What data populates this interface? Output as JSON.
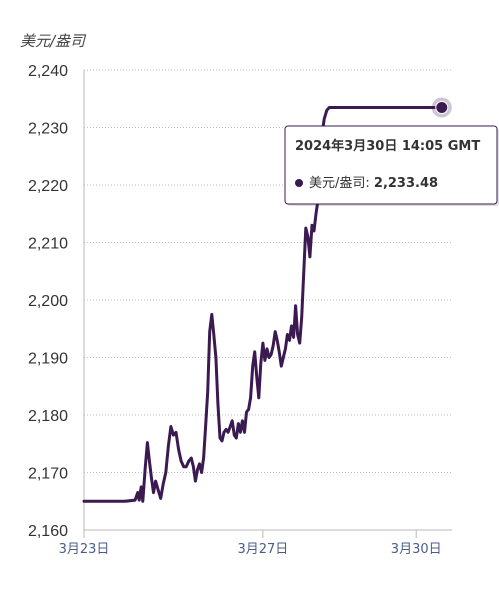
{
  "chart_data": {
    "type": "line",
    "ylabel": "美元/盎司",
    "ylim": [
      2160,
      2240
    ],
    "yticks": [
      2160,
      2170,
      2180,
      2190,
      2200,
      2210,
      2220,
      2230,
      2240
    ],
    "ytick_labels": [
      "2,160",
      "2,170",
      "2,180",
      "2,190",
      "2,200",
      "2,210",
      "2,220",
      "2,230",
      "2,240"
    ],
    "xlim": [
      0,
      7.2
    ],
    "xticks": [
      {
        "x": 0,
        "label": "3月23日"
      },
      {
        "x": 3.5,
        "label": "3月27日"
      },
      {
        "x": 6.5,
        "label": "3月30日"
      }
    ],
    "x_unit": "days since 3月23日",
    "grid": true,
    "line_color": "#3b1a52",
    "series": [
      {
        "name": "美元/盎司",
        "points": [
          [
            0.0,
            2165.0
          ],
          [
            0.2,
            2165.0
          ],
          [
            0.4,
            2165.0
          ],
          [
            0.6,
            2165.0
          ],
          [
            0.8,
            2165.0
          ],
          [
            1.0,
            2165.2
          ],
          [
            1.05,
            2166.5
          ],
          [
            1.08,
            2165.2
          ],
          [
            1.12,
            2167.5
          ],
          [
            1.15,
            2165.0
          ],
          [
            1.2,
            2171.0
          ],
          [
            1.24,
            2175.2
          ],
          [
            1.28,
            2172.0
          ],
          [
            1.32,
            2169.0
          ],
          [
            1.36,
            2166.5
          ],
          [
            1.4,
            2168.5
          ],
          [
            1.45,
            2167.0
          ],
          [
            1.5,
            2165.5
          ],
          [
            1.55,
            2168.0
          ],
          [
            1.6,
            2170.0
          ],
          [
            1.65,
            2174.5
          ],
          [
            1.7,
            2178.0
          ],
          [
            1.75,
            2176.5
          ],
          [
            1.8,
            2177.0
          ],
          [
            1.85,
            2174.0
          ],
          [
            1.9,
            2172.0
          ],
          [
            1.95,
            2171.0
          ],
          [
            2.0,
            2171.0
          ],
          [
            2.05,
            2172.0
          ],
          [
            2.1,
            2172.5
          ],
          [
            2.14,
            2171.0
          ],
          [
            2.18,
            2168.5
          ],
          [
            2.22,
            2170.5
          ],
          [
            2.26,
            2171.5
          ],
          [
            2.3,
            2170.0
          ],
          [
            2.34,
            2172.5
          ],
          [
            2.38,
            2178.0
          ],
          [
            2.42,
            2184.0
          ],
          [
            2.46,
            2194.5
          ],
          [
            2.5,
            2197.5
          ],
          [
            2.54,
            2194.0
          ],
          [
            2.58,
            2190.0
          ],
          [
            2.62,
            2182.0
          ],
          [
            2.66,
            2176.0
          ],
          [
            2.7,
            2175.5
          ],
          [
            2.74,
            2177.0
          ],
          [
            2.78,
            2177.5
          ],
          [
            2.82,
            2177.0
          ],
          [
            2.86,
            2178.0
          ],
          [
            2.9,
            2179.0
          ],
          [
            2.94,
            2176.5
          ],
          [
            2.98,
            2176.0
          ],
          [
            3.02,
            2178.5
          ],
          [
            3.06,
            2177.0
          ],
          [
            3.1,
            2179.0
          ],
          [
            3.14,
            2177.0
          ],
          [
            3.18,
            2180.5
          ],
          [
            3.22,
            2181.0
          ],
          [
            3.26,
            2183.0
          ],
          [
            3.3,
            2188.5
          ],
          [
            3.34,
            2191.0
          ],
          [
            3.38,
            2186.5
          ],
          [
            3.42,
            2183.0
          ],
          [
            3.46,
            2189.0
          ],
          [
            3.5,
            2192.5
          ],
          [
            3.54,
            2189.5
          ],
          [
            3.58,
            2191.5
          ],
          [
            3.62,
            2190.0
          ],
          [
            3.66,
            2190.5
          ],
          [
            3.7,
            2192.0
          ],
          [
            3.74,
            2194.5
          ],
          [
            3.78,
            2193.0
          ],
          [
            3.82,
            2191.0
          ],
          [
            3.86,
            2188.5
          ],
          [
            3.9,
            2190.0
          ],
          [
            3.94,
            2191.5
          ],
          [
            3.98,
            2194.0
          ],
          [
            4.02,
            2193.0
          ],
          [
            4.06,
            2195.5
          ],
          [
            4.1,
            2193.5
          ],
          [
            4.14,
            2199.0
          ],
          [
            4.18,
            2194.0
          ],
          [
            4.22,
            2192.5
          ],
          [
            4.26,
            2197.0
          ],
          [
            4.3,
            2205.0
          ],
          [
            4.34,
            2212.5
          ],
          [
            4.38,
            2211.0
          ],
          [
            4.42,
            2207.5
          ],
          [
            4.46,
            2213.0
          ],
          [
            4.5,
            2212.0
          ],
          [
            4.54,
            2215.0
          ],
          [
            4.58,
            2217.5
          ],
          [
            4.62,
            2222.5
          ],
          [
            4.66,
            2229.0
          ],
          [
            4.7,
            2231.5
          ],
          [
            4.75,
            2233.0
          ],
          [
            4.8,
            2233.48
          ],
          [
            5.2,
            2233.48
          ],
          [
            5.6,
            2233.48
          ],
          [
            6.0,
            2233.48
          ],
          [
            6.5,
            2233.48
          ],
          [
            7.0,
            2233.48
          ]
        ]
      }
    ],
    "tooltip": {
      "title": "2024年3月30日 14:05 GMT",
      "series_label": "美元/盎司:",
      "value": "2,233.48"
    },
    "highlight_point": [
      7.0,
      2233.48
    ]
  }
}
